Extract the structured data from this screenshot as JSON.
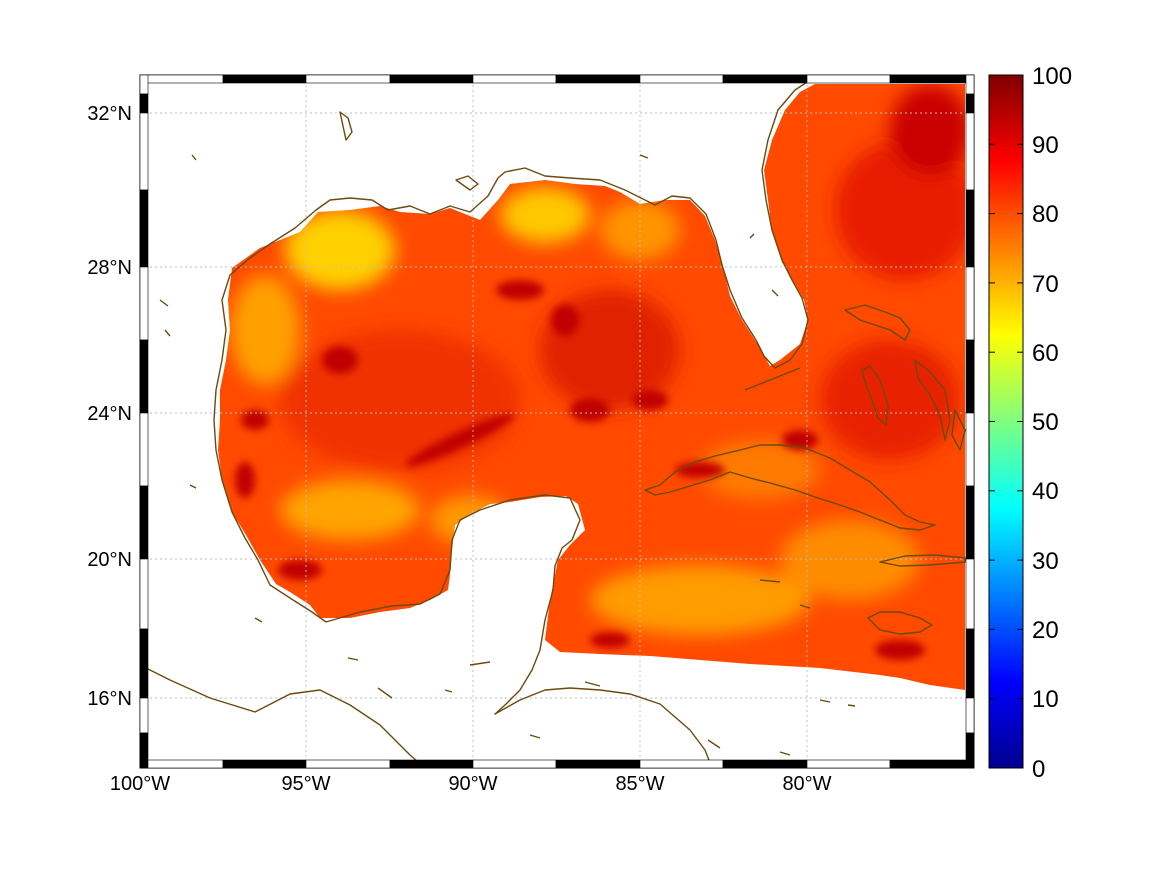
{
  "map": {
    "latitude_labels": [
      "32°N",
      "28°N",
      "24°N",
      "20°N",
      "16°N"
    ],
    "longitude_labels": [
      "100°W",
      "95°W",
      "90°W",
      "85°W",
      "80°W"
    ]
  },
  "colorbar": {
    "ticks": [
      "100",
      "90",
      "80",
      "70",
      "60",
      "50",
      "40",
      "30",
      "20",
      "10",
      "0"
    ],
    "range": [
      0,
      100
    ],
    "colormap": "jet"
  },
  "colors": {
    "coastline": "#6b4a10",
    "field_dominant": "#ff4a00",
    "field_high": "#c80000",
    "field_low": "#ffb000"
  }
}
